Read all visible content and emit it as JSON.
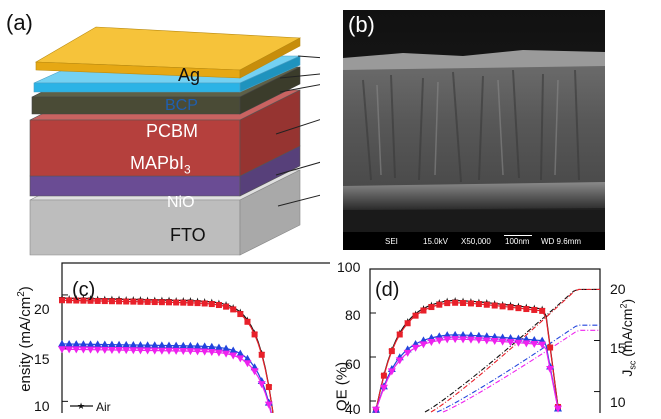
{
  "panel_a": {
    "label": "(a)",
    "layers": [
      {
        "name": "Ag",
        "color": "#f2b41c"
      },
      {
        "name": "BCP",
        "color": "#2bb3e6"
      },
      {
        "name": "PCBM",
        "color": "#b5403d"
      },
      {
        "name": "MAPbI3",
        "name_base": "MAPbI",
        "name_sub": "3",
        "color": "#6a4c94"
      },
      {
        "name": "NiO",
        "color": "#6a4c94"
      },
      {
        "name": "FTO",
        "color": "#bdbdbd"
      }
    ]
  },
  "panel_b": {
    "label": "(b)",
    "sem_info": {
      "detector": "SEI",
      "voltage": "15.0kV",
      "magnification": "X50,000",
      "scale": "100nm",
      "wd": "WD 9.6mm"
    }
  },
  "chart_data": [
    {
      "type": "line",
      "panel": "(c)",
      "ylabel": "ensity (mA/cm²)",
      "ylabel_main": "ensity (mA/cm",
      "ylabel_sup": "2",
      "ylabel_end": ")",
      "y_ticks": [
        10,
        15,
        20
      ],
      "ylim": [
        9,
        23
      ],
      "legend": [
        "Air"
      ],
      "series": [
        {
          "name": "Air",
          "color": "#111111",
          "marker": "star",
          "plateau": 19.7
        },
        {
          "color": "#e8202a",
          "marker": "square",
          "plateau": 19.5
        },
        {
          "color": "#2244dd",
          "marker": "triangle",
          "plateau": 15.4
        },
        {
          "color": "#ee22ee",
          "marker": "triangle-down",
          "plateau": 14.9
        }
      ]
    },
    {
      "type": "line",
      "panel": "(d)",
      "ylabel_left": "QE (%)",
      "ylabel_right": "J",
      "ylabel_right_sub": "sc",
      "ylabel_right_units": "(mA/cm²)",
      "ylabel_right_units_main": "(mA/cm",
      "ylabel_right_units_sup": "2",
      "ylabel_right_units_end": ")",
      "y_left_ticks": [
        40,
        60,
        80,
        100
      ],
      "y_right_ticks": [
        10,
        15,
        20
      ],
      "ylim_left": [
        35,
        100
      ],
      "series": [
        {
          "color": "#111111",
          "marker": "star",
          "peak": 87
        },
        {
          "color": "#e8202a",
          "marker": "square",
          "peak": 86
        },
        {
          "color": "#2244dd",
          "marker": "triangle",
          "peak": 71
        },
        {
          "color": "#ee22ee",
          "marker": "triangle-down",
          "peak": 69
        }
      ],
      "integrated": [
        {
          "color": "#111111",
          "final": 20
        },
        {
          "color": "#e8202a",
          "final": 20
        },
        {
          "color": "#2244dd",
          "final": 16.5
        },
        {
          "color": "#ee22ee",
          "final": 16
        }
      ]
    }
  ]
}
